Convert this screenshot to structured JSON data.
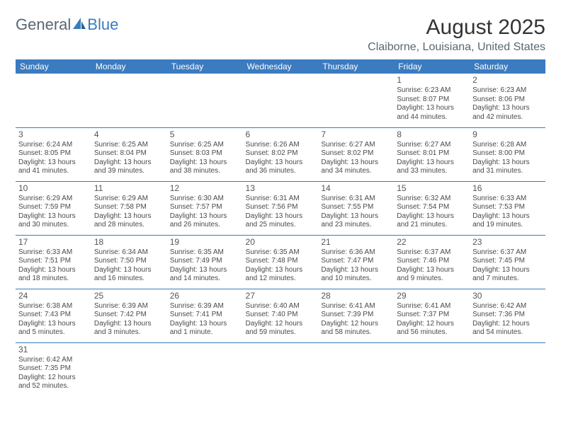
{
  "logo": {
    "part1": "General",
    "part2": "Blue"
  },
  "title": "August 2025",
  "location": "Claiborne, Louisiana, United States",
  "colors": {
    "header_bg": "#3b7bbf",
    "header_fg": "#ffffff",
    "cell_border": "#3b7bbf",
    "text": "#4a4a4a",
    "logo_gray": "#5a6670",
    "logo_blue": "#3b7bbf"
  },
  "day_headers": [
    "Sunday",
    "Monday",
    "Tuesday",
    "Wednesday",
    "Thursday",
    "Friday",
    "Saturday"
  ],
  "weeks": [
    [
      null,
      null,
      null,
      null,
      null,
      {
        "n": "1",
        "sr": "Sunrise: 6:23 AM",
        "ss": "Sunset: 8:07 PM",
        "dl1": "Daylight: 13 hours",
        "dl2": "and 44 minutes."
      },
      {
        "n": "2",
        "sr": "Sunrise: 6:23 AM",
        "ss": "Sunset: 8:06 PM",
        "dl1": "Daylight: 13 hours",
        "dl2": "and 42 minutes."
      }
    ],
    [
      {
        "n": "3",
        "sr": "Sunrise: 6:24 AM",
        "ss": "Sunset: 8:05 PM",
        "dl1": "Daylight: 13 hours",
        "dl2": "and 41 minutes."
      },
      {
        "n": "4",
        "sr": "Sunrise: 6:25 AM",
        "ss": "Sunset: 8:04 PM",
        "dl1": "Daylight: 13 hours",
        "dl2": "and 39 minutes."
      },
      {
        "n": "5",
        "sr": "Sunrise: 6:25 AM",
        "ss": "Sunset: 8:03 PM",
        "dl1": "Daylight: 13 hours",
        "dl2": "and 38 minutes."
      },
      {
        "n": "6",
        "sr": "Sunrise: 6:26 AM",
        "ss": "Sunset: 8:02 PM",
        "dl1": "Daylight: 13 hours",
        "dl2": "and 36 minutes."
      },
      {
        "n": "7",
        "sr": "Sunrise: 6:27 AM",
        "ss": "Sunset: 8:02 PM",
        "dl1": "Daylight: 13 hours",
        "dl2": "and 34 minutes."
      },
      {
        "n": "8",
        "sr": "Sunrise: 6:27 AM",
        "ss": "Sunset: 8:01 PM",
        "dl1": "Daylight: 13 hours",
        "dl2": "and 33 minutes."
      },
      {
        "n": "9",
        "sr": "Sunrise: 6:28 AM",
        "ss": "Sunset: 8:00 PM",
        "dl1": "Daylight: 13 hours",
        "dl2": "and 31 minutes."
      }
    ],
    [
      {
        "n": "10",
        "sr": "Sunrise: 6:29 AM",
        "ss": "Sunset: 7:59 PM",
        "dl1": "Daylight: 13 hours",
        "dl2": "and 30 minutes."
      },
      {
        "n": "11",
        "sr": "Sunrise: 6:29 AM",
        "ss": "Sunset: 7:58 PM",
        "dl1": "Daylight: 13 hours",
        "dl2": "and 28 minutes."
      },
      {
        "n": "12",
        "sr": "Sunrise: 6:30 AM",
        "ss": "Sunset: 7:57 PM",
        "dl1": "Daylight: 13 hours",
        "dl2": "and 26 minutes."
      },
      {
        "n": "13",
        "sr": "Sunrise: 6:31 AM",
        "ss": "Sunset: 7:56 PM",
        "dl1": "Daylight: 13 hours",
        "dl2": "and 25 minutes."
      },
      {
        "n": "14",
        "sr": "Sunrise: 6:31 AM",
        "ss": "Sunset: 7:55 PM",
        "dl1": "Daylight: 13 hours",
        "dl2": "and 23 minutes."
      },
      {
        "n": "15",
        "sr": "Sunrise: 6:32 AM",
        "ss": "Sunset: 7:54 PM",
        "dl1": "Daylight: 13 hours",
        "dl2": "and 21 minutes."
      },
      {
        "n": "16",
        "sr": "Sunrise: 6:33 AM",
        "ss": "Sunset: 7:53 PM",
        "dl1": "Daylight: 13 hours",
        "dl2": "and 19 minutes."
      }
    ],
    [
      {
        "n": "17",
        "sr": "Sunrise: 6:33 AM",
        "ss": "Sunset: 7:51 PM",
        "dl1": "Daylight: 13 hours",
        "dl2": "and 18 minutes."
      },
      {
        "n": "18",
        "sr": "Sunrise: 6:34 AM",
        "ss": "Sunset: 7:50 PM",
        "dl1": "Daylight: 13 hours",
        "dl2": "and 16 minutes."
      },
      {
        "n": "19",
        "sr": "Sunrise: 6:35 AM",
        "ss": "Sunset: 7:49 PM",
        "dl1": "Daylight: 13 hours",
        "dl2": "and 14 minutes."
      },
      {
        "n": "20",
        "sr": "Sunrise: 6:35 AM",
        "ss": "Sunset: 7:48 PM",
        "dl1": "Daylight: 13 hours",
        "dl2": "and 12 minutes."
      },
      {
        "n": "21",
        "sr": "Sunrise: 6:36 AM",
        "ss": "Sunset: 7:47 PM",
        "dl1": "Daylight: 13 hours",
        "dl2": "and 10 minutes."
      },
      {
        "n": "22",
        "sr": "Sunrise: 6:37 AM",
        "ss": "Sunset: 7:46 PM",
        "dl1": "Daylight: 13 hours",
        "dl2": "and 9 minutes."
      },
      {
        "n": "23",
        "sr": "Sunrise: 6:37 AM",
        "ss": "Sunset: 7:45 PM",
        "dl1": "Daylight: 13 hours",
        "dl2": "and 7 minutes."
      }
    ],
    [
      {
        "n": "24",
        "sr": "Sunrise: 6:38 AM",
        "ss": "Sunset: 7:43 PM",
        "dl1": "Daylight: 13 hours",
        "dl2": "and 5 minutes."
      },
      {
        "n": "25",
        "sr": "Sunrise: 6:39 AM",
        "ss": "Sunset: 7:42 PM",
        "dl1": "Daylight: 13 hours",
        "dl2": "and 3 minutes."
      },
      {
        "n": "26",
        "sr": "Sunrise: 6:39 AM",
        "ss": "Sunset: 7:41 PM",
        "dl1": "Daylight: 13 hours",
        "dl2": "and 1 minute."
      },
      {
        "n": "27",
        "sr": "Sunrise: 6:40 AM",
        "ss": "Sunset: 7:40 PM",
        "dl1": "Daylight: 12 hours",
        "dl2": "and 59 minutes."
      },
      {
        "n": "28",
        "sr": "Sunrise: 6:41 AM",
        "ss": "Sunset: 7:39 PM",
        "dl1": "Daylight: 12 hours",
        "dl2": "and 58 minutes."
      },
      {
        "n": "29",
        "sr": "Sunrise: 6:41 AM",
        "ss": "Sunset: 7:37 PM",
        "dl1": "Daylight: 12 hours",
        "dl2": "and 56 minutes."
      },
      {
        "n": "30",
        "sr": "Sunrise: 6:42 AM",
        "ss": "Sunset: 7:36 PM",
        "dl1": "Daylight: 12 hours",
        "dl2": "and 54 minutes."
      }
    ],
    [
      {
        "n": "31",
        "sr": "Sunrise: 6:42 AM",
        "ss": "Sunset: 7:35 PM",
        "dl1": "Daylight: 12 hours",
        "dl2": "and 52 minutes."
      },
      null,
      null,
      null,
      null,
      null,
      null
    ]
  ]
}
